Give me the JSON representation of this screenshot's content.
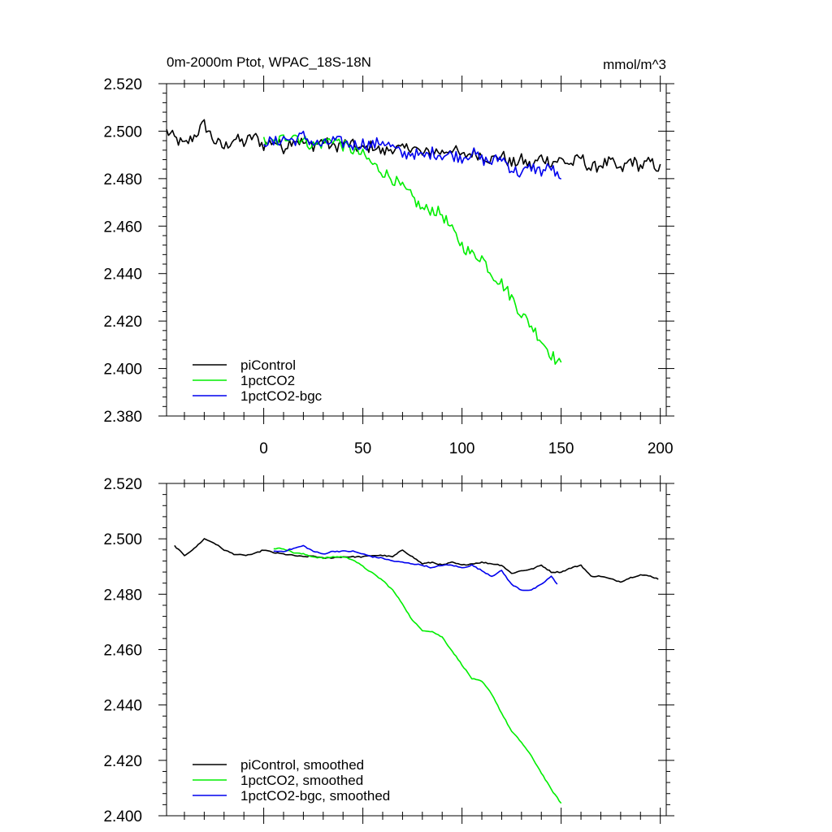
{
  "chart_data": [
    {
      "type": "line",
      "title": "0m-2000m Ptot, WPAC_18S-18N",
      "units": "mmol/m^3",
      "xlim": [
        -49,
        203
      ],
      "ylim": [
        2.38,
        2.52
      ],
      "xticks": [
        0,
        50,
        100,
        150,
        200
      ],
      "yticks": [
        "2.520",
        "2.500",
        "2.480",
        "2.460",
        "2.440",
        "2.420",
        "2.400",
        "2.380"
      ],
      "legend_placement": "lower-left",
      "series": [
        {
          "name": "piControl",
          "color": "#000000",
          "x": [
            -49,
            -45,
            -40,
            -35,
            -30,
            -25,
            -20,
            -15,
            -10,
            -5,
            0,
            5,
            10,
            15,
            20,
            25,
            30,
            35,
            40,
            45,
            50,
            55,
            60,
            65,
            70,
            75,
            80,
            85,
            90,
            95,
            100,
            105,
            110,
            115,
            120,
            125,
            130,
            135,
            140,
            145,
            150,
            155,
            160,
            165,
            170,
            175,
            180,
            185,
            190,
            195,
            200
          ],
          "values": [
            2.5,
            2.497,
            2.494,
            2.498,
            2.503,
            2.496,
            2.493,
            2.497,
            2.495,
            2.498,
            2.494,
            2.496,
            2.493,
            2.497,
            2.495,
            2.494,
            2.496,
            2.493,
            2.495,
            2.494,
            2.492,
            2.494,
            2.491,
            2.493,
            2.492,
            2.494,
            2.49,
            2.492,
            2.491,
            2.493,
            2.489,
            2.491,
            2.49,
            2.488,
            2.49,
            2.486,
            2.488,
            2.485,
            2.489,
            2.487,
            2.488,
            2.486,
            2.489,
            2.484,
            2.486,
            2.487,
            2.483,
            2.488,
            2.485,
            2.487,
            2.484
          ]
        },
        {
          "name": "1pctCO2",
          "color": "#00ee00",
          "x": [
            0,
            5,
            10,
            15,
            20,
            25,
            30,
            35,
            40,
            45,
            50,
            55,
            60,
            65,
            70,
            75,
            80,
            85,
            90,
            95,
            100,
            105,
            110,
            115,
            120,
            125,
            130,
            135,
            140,
            145,
            150
          ],
          "values": [
            2.496,
            2.495,
            2.497,
            2.499,
            2.496,
            2.494,
            2.495,
            2.497,
            2.494,
            2.492,
            2.49,
            2.486,
            2.483,
            2.48,
            2.476,
            2.472,
            2.467,
            2.467,
            2.465,
            2.458,
            2.452,
            2.448,
            2.447,
            2.44,
            2.436,
            2.43,
            2.423,
            2.418,
            2.412,
            2.406,
            2.401
          ]
        },
        {
          "name": "1pctCO2-bgc",
          "color": "#0000ee",
          "x": [
            0,
            5,
            10,
            15,
            20,
            25,
            30,
            35,
            40,
            45,
            50,
            55,
            60,
            65,
            70,
            75,
            80,
            85,
            90,
            95,
            100,
            105,
            110,
            115,
            120,
            125,
            130,
            135,
            140,
            145,
            150
          ],
          "values": [
            2.496,
            2.495,
            2.497,
            2.496,
            2.498,
            2.495,
            2.494,
            2.496,
            2.495,
            2.494,
            2.495,
            2.494,
            2.496,
            2.493,
            2.49,
            2.491,
            2.489,
            2.491,
            2.49,
            2.49,
            2.489,
            2.491,
            2.488,
            2.487,
            2.489,
            2.484,
            2.482,
            2.485,
            2.483,
            2.485,
            2.478
          ]
        }
      ]
    },
    {
      "type": "line",
      "xlim": [
        -49,
        203
      ],
      "ylim": [
        2.4,
        2.52
      ],
      "yticks": [
        "2.520",
        "2.500",
        "2.480",
        "2.460",
        "2.440",
        "2.420",
        "2.400"
      ],
      "legend_placement": "lower-left",
      "series": [
        {
          "name": "piControl, smoothed",
          "color": "#000000",
          "x": [
            -45,
            -40,
            -35,
            -30,
            -25,
            -20,
            -15,
            -10,
            -5,
            0,
            5,
            10,
            15,
            20,
            25,
            30,
            35,
            40,
            45,
            50,
            55,
            60,
            65,
            70,
            75,
            80,
            85,
            90,
            95,
            100,
            105,
            110,
            115,
            120,
            125,
            130,
            135,
            140,
            145,
            150,
            155,
            160,
            165,
            170,
            175,
            180,
            185,
            190,
            195,
            199
          ],
          "values": [
            2.4975,
            2.494,
            2.4965,
            2.5,
            2.4985,
            2.496,
            2.4945,
            2.494,
            2.4945,
            2.496,
            2.495,
            2.4945,
            2.494,
            2.4935,
            2.4938,
            2.493,
            2.4932,
            2.4935,
            2.4935,
            2.4935,
            2.494,
            2.494,
            2.4935,
            2.496,
            2.4935,
            2.491,
            2.4915,
            2.4905,
            2.4915,
            2.4905,
            2.491,
            2.4915,
            2.491,
            2.4905,
            2.4875,
            2.4885,
            2.489,
            2.4905,
            2.488,
            2.488,
            2.4895,
            2.4905,
            2.4865,
            2.4865,
            2.4855,
            2.4845,
            2.486,
            2.487,
            2.4865,
            2.4855
          ]
        },
        {
          "name": "1pctCO2, smoothed",
          "color": "#00ee00",
          "x": [
            5,
            10,
            15,
            20,
            25,
            30,
            35,
            40,
            45,
            50,
            55,
            60,
            65,
            70,
            75,
            80,
            85,
            90,
            95,
            100,
            105,
            110,
            115,
            120,
            125,
            130,
            135,
            140,
            145,
            150
          ],
          "values": [
            2.4965,
            2.4965,
            2.495,
            2.4945,
            2.4935,
            2.493,
            2.4935,
            2.4935,
            2.4925,
            2.49,
            2.4875,
            2.485,
            2.4815,
            2.4765,
            2.4705,
            2.467,
            2.4665,
            2.4645,
            2.4595,
            2.4545,
            2.4495,
            2.4485,
            2.444,
            2.437,
            2.4305,
            2.4265,
            2.4215,
            2.4155,
            2.4095,
            2.4045
          ]
        },
        {
          "name": "1pctCO2-bgc, smoothed",
          "color": "#0000ee",
          "x": [
            5,
            10,
            15,
            20,
            25,
            30,
            35,
            40,
            45,
            50,
            55,
            60,
            65,
            70,
            75,
            80,
            85,
            90,
            95,
            100,
            105,
            110,
            115,
            120,
            125,
            130,
            135,
            140,
            145,
            148
          ],
          "values": [
            2.4955,
            2.4955,
            2.4965,
            2.4975,
            2.4955,
            2.4945,
            2.4955,
            2.4955,
            2.4955,
            2.4945,
            2.4935,
            2.493,
            2.492,
            2.4915,
            2.491,
            2.4905,
            2.4895,
            2.4905,
            2.4905,
            2.4895,
            2.4905,
            2.4885,
            2.4865,
            2.4885,
            2.4835,
            2.4815,
            2.4815,
            2.4835,
            2.4865,
            2.4835
          ]
        }
      ]
    }
  ]
}
